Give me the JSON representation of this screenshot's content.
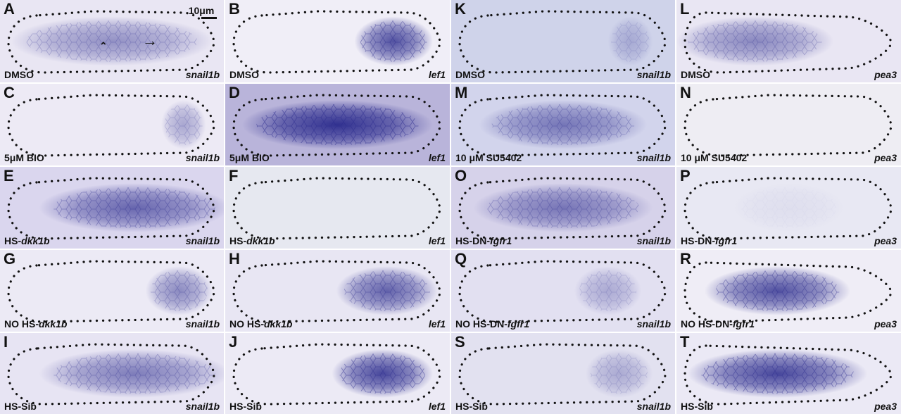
{
  "figure": {
    "scale_label": "10μm",
    "panels": [
      {
        "letter": "A",
        "cond": "DMSO",
        "cond_italic": "",
        "gene": "snail1b"
      },
      {
        "letter": "B",
        "cond": "DMSO",
        "cond_italic": "",
        "gene": "lef1"
      },
      {
        "letter": "K",
        "cond": "DMSO",
        "cond_italic": "",
        "gene": "snail1b"
      },
      {
        "letter": "L",
        "cond": "DMSO",
        "cond_italic": "",
        "gene": "pea3"
      },
      {
        "letter": "C",
        "cond": "5μM BIO",
        "cond_italic": "",
        "gene": "snail1b"
      },
      {
        "letter": "D",
        "cond": "5μM BIO",
        "cond_italic": "",
        "gene": "lef1"
      },
      {
        "letter": "M",
        "cond": "10 μM SU5402",
        "cond_italic": "",
        "gene": "snail1b"
      },
      {
        "letter": "N",
        "cond": "10 μM SU5402",
        "cond_italic": "",
        "gene": "pea3"
      },
      {
        "letter": "E",
        "cond": "HS-",
        "cond_italic": "dkk1b",
        "gene": "snail1b"
      },
      {
        "letter": "F",
        "cond": "HS-",
        "cond_italic": "dkk1b",
        "gene": "lef1"
      },
      {
        "letter": "O",
        "cond": "HS-DN-",
        "cond_italic": "fgfr1",
        "gene": "snail1b"
      },
      {
        "letter": "P",
        "cond": "HS-DN-",
        "cond_italic": "fgfr1",
        "gene": "pea3"
      },
      {
        "letter": "G",
        "cond": "NO HS-",
        "cond_italic": "dkk1b",
        "gene": "snail1b"
      },
      {
        "letter": "H",
        "cond": "NO HS-",
        "cond_italic": "dkk1b",
        "gene": "lef1"
      },
      {
        "letter": "Q",
        "cond": "NO HS-DN-",
        "cond_italic": "fgfr1",
        "gene": "snail1b"
      },
      {
        "letter": "R",
        "cond": "NO HS-DN-",
        "cond_italic": "fgfr1",
        "gene": "pea3"
      },
      {
        "letter": "I",
        "cond": "HS-Sib",
        "cond_italic": "",
        "gene": "snail1b"
      },
      {
        "letter": "J",
        "cond": "HS-Sib",
        "cond_italic": "",
        "gene": "lef1"
      },
      {
        "letter": "S",
        "cond": "HS-Sib",
        "cond_italic": "",
        "gene": "snail1b"
      },
      {
        "letter": "T",
        "cond": "HS-Sib",
        "cond_italic": "",
        "gene": "pea3"
      }
    ]
  },
  "colors": {
    "background_light": "#e6e4f1",
    "stain": "#2a2a8c",
    "dots": "#111111"
  }
}
